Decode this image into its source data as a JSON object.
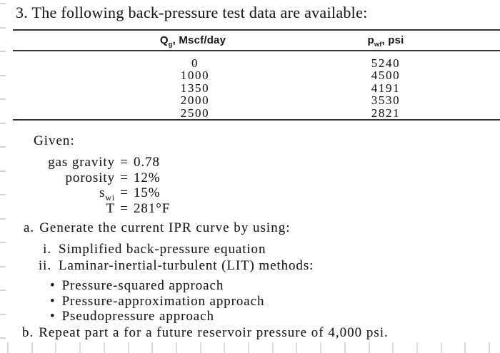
{
  "problem": {
    "title": "3. The following back-pressure test data are available:"
  },
  "table": {
    "headers": {
      "q": {
        "main": "Q",
        "sub": "g",
        "rest": ", Mscf/day"
      },
      "p": {
        "main": "p",
        "sub": "wf",
        "rest": ", psi"
      }
    },
    "rows": [
      {
        "q": "0",
        "p": "5240"
      },
      {
        "q": "1000",
        "p": "4500"
      },
      {
        "q": "1350",
        "p": "4191"
      },
      {
        "q": "2000",
        "p": "3530"
      },
      {
        "q": "2500",
        "p": "2821"
      }
    ]
  },
  "given": {
    "heading": "Given:",
    "equals": "=",
    "items": [
      {
        "label": "gas gravity",
        "sub": "",
        "value": "0.78"
      },
      {
        "label": "porosity",
        "sub": "",
        "value": "12%"
      },
      {
        "label": "s",
        "sub": "wi",
        "value": "15%"
      },
      {
        "label": "T",
        "sub": "",
        "value": "281°F"
      }
    ]
  },
  "part_a": {
    "label": "a.",
    "text": "Generate the current IPR curve by using:",
    "items": [
      {
        "numeral": "i.",
        "text": "Simplified back-pressure equation"
      },
      {
        "numeral": "ii.",
        "text": "Laminar-inertial-turbulent (LIT) methods:"
      }
    ],
    "bullet_char": "•",
    "bullets": [
      "Pressure-squared approach",
      "Pressure-approximation approach",
      "Pseudopressure approach"
    ]
  },
  "part_b": {
    "label": "b.",
    "text": "Repeat part a for a future reservoir pressure of 4,000 psi."
  }
}
